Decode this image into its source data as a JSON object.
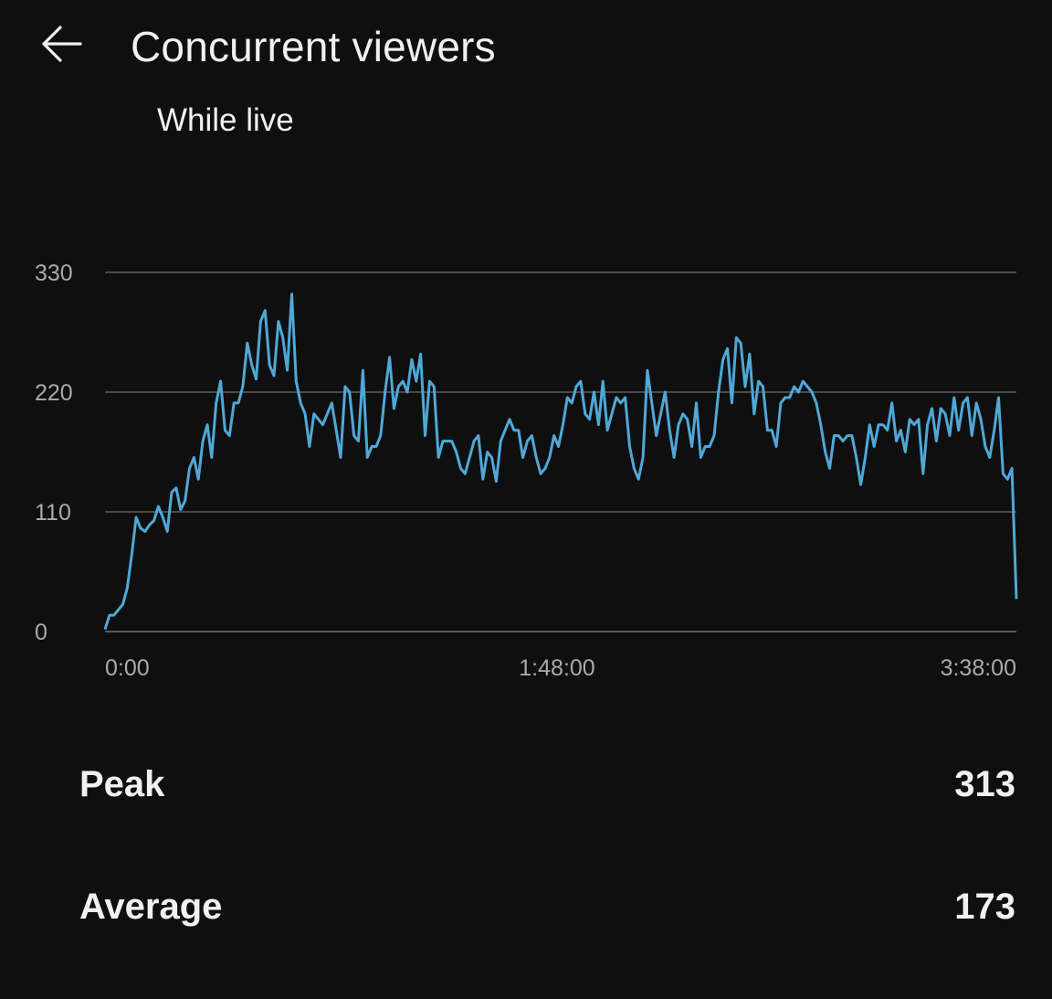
{
  "header": {
    "title": "Concurrent viewers",
    "back_icon": "arrow-left-icon"
  },
  "subtitle": "While live",
  "chart_data": {
    "type": "line",
    "title": "",
    "xlabel": "",
    "ylabel": "",
    "x_unit": "elapsed time (h:mm:ss)",
    "x_tick_labels": [
      "0:00",
      "1:48:00",
      "3:38:00"
    ],
    "x_range": [
      "0:00",
      "3:38:00"
    ],
    "y_ticks": [
      0,
      110,
      220,
      330
    ],
    "ylim": [
      0,
      330
    ],
    "grid": true,
    "line_color": "#4fa8d8",
    "series": [
      {
        "values": [
          2,
          15,
          15,
          20,
          25,
          40,
          70,
          105,
          95,
          92,
          98,
          102,
          115,
          105,
          92,
          128,
          132,
          112,
          120,
          150,
          160,
          140,
          175,
          190,
          160,
          210,
          230,
          185,
          180,
          210,
          210,
          225,
          265,
          245,
          232,
          285,
          295,
          245,
          235,
          285,
          270,
          240,
          310,
          230,
          210,
          200,
          170,
          200,
          195,
          190,
          200,
          210,
          185,
          160,
          225,
          220,
          180,
          175,
          240,
          160,
          170,
          170,
          180,
          220,
          252,
          205,
          225,
          230,
          220,
          250,
          230,
          255,
          180,
          230,
          225,
          160,
          175,
          175,
          175,
          165,
          150,
          145,
          160,
          175,
          180,
          140,
          165,
          160,
          138,
          175,
          185,
          195,
          185,
          185,
          160,
          175,
          180,
          160,
          145,
          150,
          160,
          180,
          170,
          190,
          215,
          210,
          225,
          230,
          200,
          195,
          220,
          190,
          230,
          185,
          200,
          215,
          210,
          215,
          170,
          150,
          140,
          160,
          240,
          210,
          180,
          200,
          220,
          185,
          160,
          190,
          200,
          195,
          170,
          210,
          160,
          170,
          170,
          180,
          220,
          250,
          260,
          210,
          270,
          265,
          225,
          255,
          200,
          230,
          225,
          185,
          185,
          170,
          210,
          215,
          215,
          225,
          220,
          230,
          225,
          220,
          210,
          190,
          165,
          150,
          180,
          180,
          175,
          180,
          180,
          160,
          135,
          160,
          190,
          170,
          190,
          190,
          185,
          210,
          175,
          185,
          165,
          195,
          190,
          195,
          145,
          190,
          205,
          175,
          205,
          200,
          180,
          215,
          185,
          210,
          215,
          180,
          210,
          195,
          170,
          160,
          185,
          215,
          145,
          140,
          150,
          30
        ]
      }
    ]
  },
  "stats": {
    "peak_label": "Peak",
    "peak_value": "313",
    "average_label": "Average",
    "average_value": "173"
  }
}
